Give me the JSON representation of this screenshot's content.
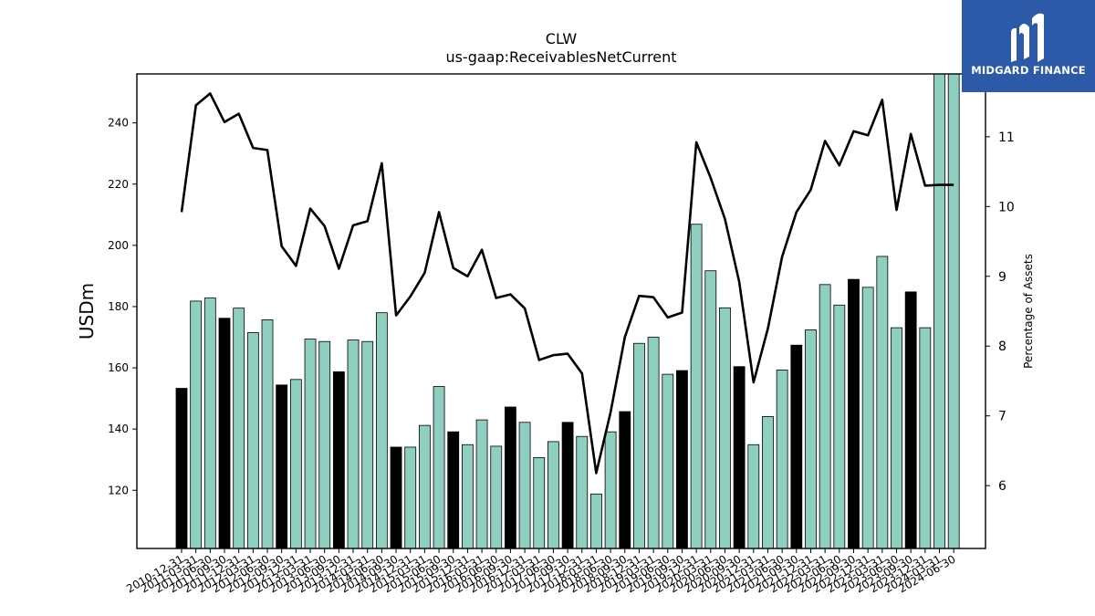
{
  "chart_data": {
    "type": "bar",
    "title": "CLW",
    "subtitle": "us-gaap:ReceivablesNetCurrent",
    "ylabel": "USDm",
    "y2label": "Percentage of Assets",
    "ylim": [
      101,
      256
    ],
    "y2lim": [
      5.1,
      11.9
    ],
    "yticks": [
      120,
      140,
      160,
      180,
      200,
      220,
      240
    ],
    "y2ticks": [
      6,
      7,
      8,
      9,
      10,
      11
    ],
    "categories": [
      "2010-12-31",
      "2011-03-31",
      "2011-06-30",
      "2011-09-30",
      "2011-12-31",
      "2012-03-31",
      "2012-06-30",
      "2012-09-30",
      "2012-12-31",
      "2013-03-31",
      "2013-06-30",
      "2013-09-30",
      "2013-12-31",
      "2014-03-31",
      "2014-06-30",
      "2014-09-30",
      "2014-12-31",
      "2015-03-31",
      "2015-06-30",
      "2015-09-30",
      "2015-12-31",
      "2016-03-31",
      "2016-06-30",
      "2016-09-30",
      "2016-12-31",
      "2017-03-31",
      "2017-06-30",
      "2017-09-30",
      "2017-12-31",
      "2018-03-31",
      "2018-06-30",
      "2018-09-30",
      "2018-12-31",
      "2019-03-31",
      "2019-06-30",
      "2019-09-30",
      "2019-12-31",
      "2020-03-31",
      "2020-06-30",
      "2020-09-30",
      "2020-12-31",
      "2021-03-31",
      "2021-06-30",
      "2021-09-30",
      "2021-12-31",
      "2022-03-31",
      "2022-06-30",
      "2022-09-30",
      "2022-12-31",
      "2023-03-31",
      "2023-06-30",
      "2023-09-30",
      "2023-12-31",
      "2024-03-31",
      "2024-06-30"
    ],
    "series": [
      {
        "type": "bar",
        "axis": "left",
        "values": [
          153.3,
          181.8,
          182.8,
          176.2,
          179.5,
          171.5,
          175.7,
          154.4,
          156.2,
          169.4,
          168.6,
          158.7,
          169.1,
          168.6,
          178.0,
          134.1,
          134.1,
          141.2,
          153.9,
          139.1,
          134.9,
          143.0,
          134.4,
          147.2,
          142.2,
          130.7,
          135.9,
          142.2,
          137.6,
          118.8,
          139.1,
          145.7,
          168.0,
          170.0,
          157.9,
          159.1,
          206.9,
          191.7,
          179.6,
          160.4,
          134.9,
          144.1,
          159.3,
          167.4,
          172.4,
          187.2,
          180.5,
          188.9,
          186.3,
          196.4,
          173.1,
          184.8,
          173.1,
          256.0,
          256.0
        ],
        "colors": [
          "#000000",
          "#8ecfc0",
          "#8ecfc0",
          "#000000",
          "#8ecfc0",
          "#8ecfc0",
          "#8ecfc0",
          "#000000",
          "#8ecfc0",
          "#8ecfc0",
          "#8ecfc0",
          "#000000",
          "#8ecfc0",
          "#8ecfc0",
          "#8ecfc0",
          "#000000",
          "#8ecfc0",
          "#8ecfc0",
          "#8ecfc0",
          "#000000",
          "#8ecfc0",
          "#8ecfc0",
          "#8ecfc0",
          "#000000",
          "#8ecfc0",
          "#8ecfc0",
          "#8ecfc0",
          "#000000",
          "#8ecfc0",
          "#8ecfc0",
          "#8ecfc0",
          "#000000",
          "#8ecfc0",
          "#8ecfc0",
          "#8ecfc0",
          "#000000",
          "#8ecfc0",
          "#8ecfc0",
          "#8ecfc0",
          "#000000",
          "#8ecfc0",
          "#8ecfc0",
          "#8ecfc0",
          "#000000",
          "#8ecfc0",
          "#8ecfc0",
          "#8ecfc0",
          "#000000",
          "#8ecfc0",
          "#8ecfc0",
          "#8ecfc0",
          "#000000",
          "#8ecfc0",
          "#8ecfc0",
          "#8ecfc0"
        ]
      },
      {
        "type": "line",
        "axis": "right",
        "color": "#000000",
        "values": [
          9.92,
          11.45,
          11.62,
          11.21,
          11.33,
          10.84,
          10.81,
          9.43,
          9.15,
          9.97,
          9.72,
          9.11,
          9.73,
          9.79,
          10.62,
          8.44,
          8.71,
          9.05,
          9.92,
          9.12,
          9.0,
          9.38,
          8.69,
          8.74,
          8.54,
          7.8,
          7.87,
          7.89,
          7.61,
          6.18,
          7.05,
          8.13,
          8.72,
          8.7,
          8.41,
          8.48,
          10.92,
          10.41,
          9.82,
          8.92,
          7.48,
          8.25,
          9.28,
          9.92,
          10.24,
          10.94,
          10.59,
          11.08,
          11.02,
          11.53,
          9.95,
          11.04,
          10.3,
          10.31,
          10.31
        ]
      }
    ],
    "grid": false,
    "legend": "none",
    "bar_colors": {
      "annual": "#000000",
      "quarter": "#8ecfc0"
    }
  },
  "logo": {
    "text": "MIDGARD FINANCE",
    "background": "#2c5aa8"
  }
}
